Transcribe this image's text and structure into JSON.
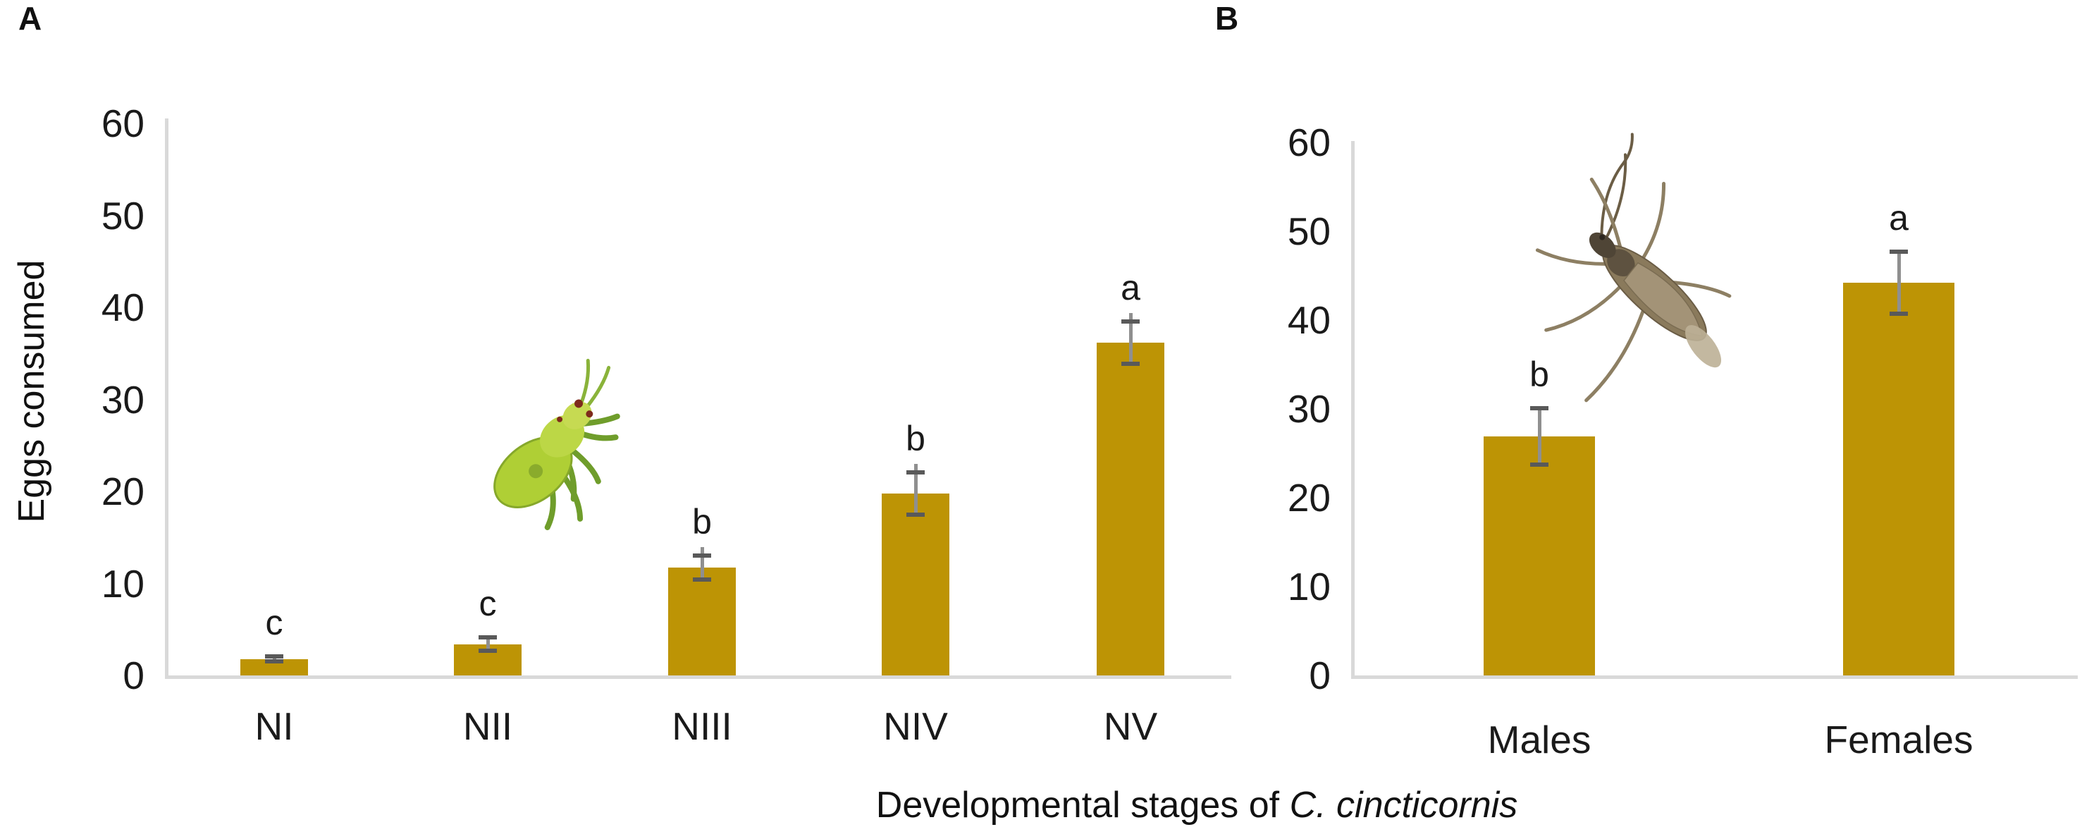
{
  "figure": {
    "background": "#FFFFFF",
    "panels": [
      {
        "id": "A",
        "label": "A"
      },
      {
        "id": "B",
        "label": "B"
      }
    ],
    "y_axis_title": "Eggs consumed",
    "caption": {
      "prefix": "Developmental stages of ",
      "species": "C. cincticornis"
    },
    "images": [
      {
        "name": "green-nymph-photo",
        "panel": "A",
        "description": "green mirid nymph insect photo"
      },
      {
        "name": "adult-bug-photo",
        "panel": "B",
        "description": "brown slender adult bug photo"
      }
    ],
    "colors": {
      "bar": "#BD9405",
      "axis": "#D9D9D9",
      "error_line": "#8F8F8F",
      "error_cap": "#595959",
      "text": "#1A1A1A"
    }
  },
  "chart_data": [
    {
      "type": "bar",
      "panel": "A",
      "title": "",
      "categories": [
        "NI",
        "NII",
        "NIII",
        "NIV",
        "NV"
      ],
      "values": [
        1.8,
        3.4,
        11.7,
        19.8,
        36.2
      ],
      "errors": [
        0.3,
        0.7,
        1.3,
        2.3,
        2.3
      ],
      "sig_letters": [
        "c",
        "c",
        "b",
        "b",
        "a"
      ],
      "y_ticks": [
        0,
        10,
        20,
        30,
        40,
        50,
        60
      ],
      "ylim": [
        0,
        60
      ],
      "ylabel": "Eggs consumed",
      "xlabel": "Developmental stages of C. cincticornis",
      "grid": false,
      "legend": false
    },
    {
      "type": "bar",
      "panel": "B",
      "title": "",
      "categories": [
        "Males",
        "Females"
      ],
      "values": [
        26.9,
        44.2
      ],
      "errors": [
        3.2,
        3.5
      ],
      "sig_letters": [
        "b",
        "a"
      ],
      "y_ticks": [
        0,
        10,
        20,
        30,
        40,
        50,
        60
      ],
      "ylim": [
        0,
        60
      ],
      "ylabel": "Eggs consumed",
      "xlabel": "",
      "grid": false,
      "legend": false
    }
  ]
}
